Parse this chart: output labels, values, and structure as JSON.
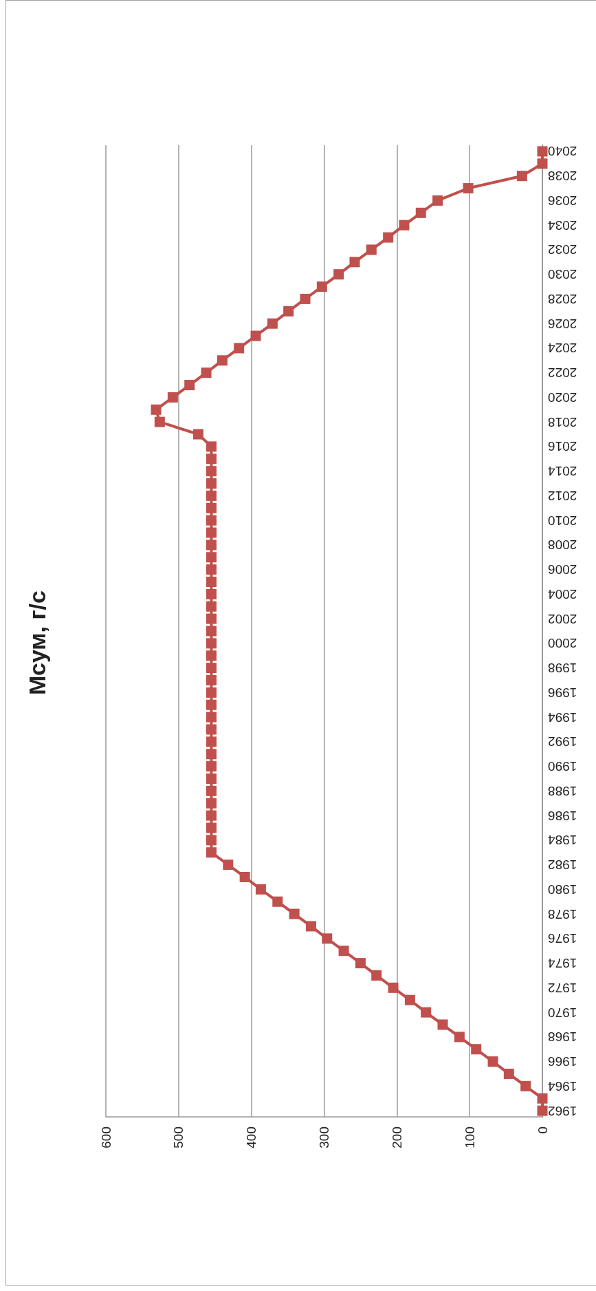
{
  "chart_data": {
    "type": "line",
    "title": "Мсум, г/с",
    "orientation": "horizontal",
    "categories": [
      "2040",
      null,
      "2038",
      null,
      "2036",
      null,
      "2034",
      null,
      "2032",
      null,
      "2030",
      null,
      "2028",
      null,
      "2026",
      null,
      "2024",
      null,
      "2022",
      null,
      "2020",
      null,
      "2018",
      null,
      "2016",
      null,
      "2014",
      null,
      "2012",
      null,
      "2010",
      null,
      "2008",
      null,
      "2006",
      null,
      "2004",
      null,
      "2002",
      null,
      "2000",
      null,
      "1998",
      null,
      "1996",
      null,
      "1994",
      null,
      "1992",
      null,
      "1990",
      null,
      "1988",
      null,
      "1986",
      null,
      "1984",
      null,
      "1982",
      null,
      "1980",
      null,
      "1978",
      null,
      "1976",
      null,
      "1974",
      null,
      "1972",
      null,
      "1970",
      null,
      "1968",
      null,
      "1966",
      null,
      "1964",
      null,
      "1962"
    ],
    "series": [
      {
        "color": "#c0504d",
        "values": [
          0,
          0,
          28,
          102,
          144,
          167,
          190,
          212,
          235,
          258,
          280,
          303,
          326,
          349,
          371,
          394,
          417,
          440,
          462,
          485,
          508,
          531,
          526,
          473,
          455,
          455,
          455,
          455,
          455,
          455,
          455,
          455,
          455,
          455,
          455,
          455,
          455,
          455,
          455,
          455,
          455,
          455,
          455,
          455,
          455,
          455,
          455,
          455,
          455,
          455,
          455,
          455,
          455,
          455,
          455,
          455,
          455,
          455,
          432,
          409,
          387,
          364,
          341,
          318,
          296,
          273,
          250,
          228,
          205,
          182,
          160,
          137,
          114,
          91,
          68,
          46,
          23,
          0,
          0
        ]
      }
    ],
    "xlim": [
      600,
      0
    ],
    "xticks": [
      600,
      500,
      400,
      300,
      200,
      100,
      0
    ],
    "grid": "x",
    "marker": "square",
    "line_style": "solid"
  }
}
